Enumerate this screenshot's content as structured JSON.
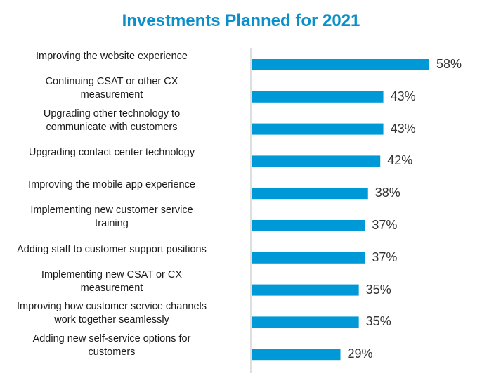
{
  "colors": {
    "bar": "#0099D8",
    "title": "#0B8FC9",
    "axis": "#BFBFBF"
  },
  "chart_data": {
    "type": "bar",
    "orientation": "horizontal",
    "title": "Investments Planned for 2021",
    "categories": [
      "Improving the website experience",
      "Continuing CSAT or other CX measurement",
      "Upgrading other technology to communicate with customers",
      "Upgrading contact center technology",
      "Improving the mobile app experience",
      "Implementing new customer service training",
      "Adding staff to customer support positions",
      "Implementing new CSAT or CX measurement",
      "Improving how customer service channels work together seamlessly",
      "Adding new self-service options for customers"
    ],
    "category_lines": [
      [
        "Improving the website experience"
      ],
      [
        "Continuing CSAT or other CX",
        "measurement"
      ],
      [
        "Upgrading other technology to",
        "communicate with customers"
      ],
      [
        "Upgrading contact center technology"
      ],
      [
        "Improving the mobile app experience"
      ],
      [
        "Implementing new customer service",
        "training"
      ],
      [
        "Adding staff to customer support positions"
      ],
      [
        "Implementing new CSAT or CX",
        "measurement"
      ],
      [
        "Improving how customer service channels",
        "work together seamlessly"
      ],
      [
        "Adding new self-service options for",
        "customers"
      ]
    ],
    "values": [
      58,
      43,
      43,
      42,
      38,
      37,
      37,
      35,
      35,
      29
    ],
    "value_labels": [
      "58%",
      "43%",
      "43%",
      "42%",
      "38%",
      "37%",
      "37%",
      "35%",
      "35%",
      "29%"
    ],
    "unit": "%",
    "xlim": [
      0,
      58
    ],
    "grid": false,
    "legend": "none"
  }
}
